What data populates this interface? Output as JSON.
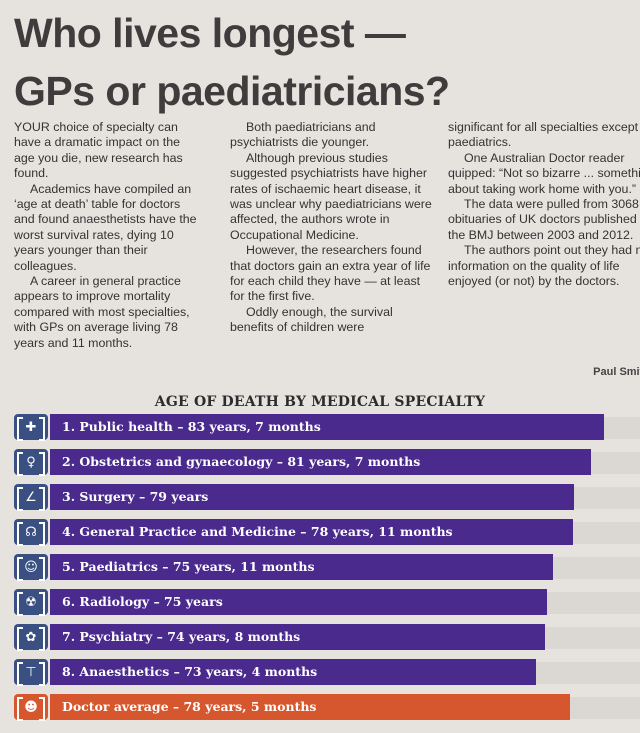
{
  "article": {
    "headline_line1": "Who lives longest —",
    "headline_line2": "GPs or paediatricians?",
    "col1": [
      "YOUR choice of specialty can have a dramatic impact on the age you die, new research has found.",
      "Academics have compiled an ‘age at death’ table for doctors and found anaesthetists have the worst survival rates, dying 10 years younger than their colleagues.",
      "A career in general practice appears to improve mortality compared with most specialties, with GPs on average living 78 years and 11 months."
    ],
    "col2": [
      "Both paediatricians and psychiatrists die younger.",
      "Although previous studies suggested psychiatrists have higher rates of ischaemic heart disease, it was unclear why paediatricians were affected, the authors wrote in Occupational Medicine.",
      "However, the researchers found that doctors gain an extra year of life for each child they have — at least for the first five.",
      "Oddly enough, the survival benefits of children were"
    ],
    "col3": [
      "significant for all specialties except paediatrics.",
      "One Australian Doctor reader quipped: “Not so bizarre ... something about taking work home with you.”",
      "The data were pulled from 3068 obituaries of UK doctors published in the BMJ between 2003 and 2012.",
      "The authors point out they had no information on the quality of life enjoyed (or not) by the doctors."
    ],
    "byline": "Paul Smith"
  },
  "colors": {
    "specialty_bar": "#4a2a8c",
    "icon_box": "#3a4f82",
    "average_bar": "#d6572e",
    "average_icon": "#d6572e"
  },
  "chart_data": {
    "type": "bar",
    "orientation": "horizontal",
    "title": "AGE OF DEATH BY MEDICAL SPECIALTY",
    "xlim_years": [
      0,
      84.5
    ],
    "items": [
      {
        "label": "1. Public health – 83 years, 7 months",
        "years": 83.58,
        "icon": "first-aid-kit-icon",
        "kind": "specialty"
      },
      {
        "label": "2. Obstetrics and gynaecology – 81 years, 7 months",
        "years": 81.58,
        "icon": "pregnant-figure-icon",
        "kind": "specialty"
      },
      {
        "label": "3. Surgery – 79 years",
        "years": 79.0,
        "icon": "scalpel-icon",
        "kind": "specialty"
      },
      {
        "label": "4. General Practice and Medicine – 78 years, 11 months",
        "years": 78.92,
        "icon": "stethoscope-icon",
        "kind": "specialty"
      },
      {
        "label": "5. Paediatrics – 75 years, 11 months",
        "years": 75.92,
        "icon": "child-figure-icon",
        "kind": "specialty"
      },
      {
        "label": "6. Radiology – 75 years",
        "years": 75.0,
        "icon": "radiation-icon",
        "kind": "specialty"
      },
      {
        "label": "7. Psychiatry – 74 years, 8 months",
        "years": 74.67,
        "icon": "brain-icon",
        "kind": "specialty"
      },
      {
        "label": "8. Anaesthetics – 73 years, 4 months",
        "years": 73.33,
        "icon": "syringe-icon",
        "kind": "specialty"
      },
      {
        "label": "Doctor average – 78 years, 5 months",
        "years": 78.42,
        "icon": "doctors-group-icon",
        "kind": "average"
      }
    ]
  }
}
